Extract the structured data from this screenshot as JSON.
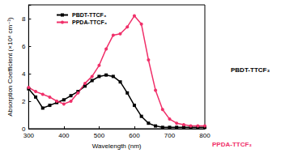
{
  "chart_data": {
    "type": "line",
    "x_label": "Wavelength (nm)",
    "y_label": "Absorption Coefficient (×10⁴ cm⁻¹)",
    "xlim": [
      300,
      800
    ],
    "xticks": [
      300,
      400,
      500,
      600,
      700,
      800
    ],
    "ylim": [
      0,
      9
    ],
    "yticks": [
      0,
      2,
      4,
      6,
      8
    ],
    "legend": "top-left",
    "grid": false,
    "series": [
      {
        "name": "PBDT-TTCF₃",
        "color": "#000000",
        "marker": "square",
        "line_style": "solid",
        "x": [
          300,
          320,
          340,
          360,
          380,
          400,
          420,
          440,
          460,
          480,
          500,
          520,
          540,
          560,
          580,
          600,
          620,
          640,
          660,
          680,
          700,
          720,
          740,
          760,
          780,
          800
        ],
        "values": [
          2.9,
          2.3,
          1.5,
          1.7,
          1.9,
          2.1,
          2.4,
          2.7,
          3.1,
          3.5,
          3.8,
          3.9,
          3.8,
          3.4,
          2.6,
          1.7,
          0.9,
          0.4,
          0.2,
          0.1,
          0.1,
          0.1,
          0.1,
          0.1,
          0.1,
          0.1
        ]
      },
      {
        "name": "PPDA-TTCF₃",
        "color": "#f0306a",
        "marker": "circle",
        "line_style": "solid",
        "x": [
          300,
          320,
          340,
          360,
          380,
          400,
          420,
          440,
          460,
          480,
          500,
          520,
          540,
          560,
          580,
          600,
          620,
          640,
          660,
          680,
          700,
          720,
          740,
          760,
          780,
          800
        ],
        "values": [
          3.0,
          2.7,
          2.5,
          2.3,
          2.0,
          1.8,
          2.0,
          2.6,
          3.3,
          3.8,
          4.6,
          5.8,
          6.8,
          6.9,
          7.4,
          8.2,
          7.6,
          5.0,
          2.8,
          1.4,
          0.7,
          0.4,
          0.3,
          0.2,
          0.2,
          0.2
        ]
      }
    ]
  }
}
